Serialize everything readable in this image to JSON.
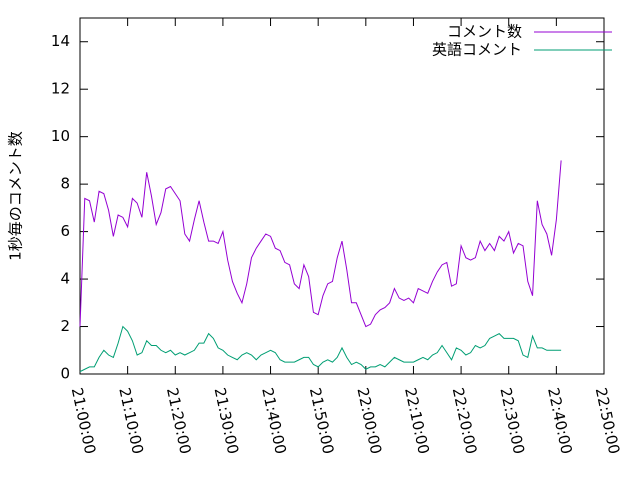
{
  "chart_data": {
    "type": "line",
    "ylabel": "1秒毎のコメント数",
    "x": [
      "21:00:00",
      "21:01:00",
      "21:02:00",
      "21:03:00",
      "21:04:00",
      "21:05:00",
      "21:06:00",
      "21:07:00",
      "21:08:00",
      "21:09:00",
      "21:10:00",
      "21:11:00",
      "21:12:00",
      "21:13:00",
      "21:14:00",
      "21:15:00",
      "21:16:00",
      "21:17:00",
      "21:18:00",
      "21:19:00",
      "21:20:00",
      "21:21:00",
      "21:22:00",
      "21:23:00",
      "21:24:00",
      "21:25:00",
      "21:26:00",
      "21:27:00",
      "21:28:00",
      "21:29:00",
      "21:30:00",
      "21:31:00",
      "21:32:00",
      "21:33:00",
      "21:34:00",
      "21:35:00",
      "21:36:00",
      "21:37:00",
      "21:38:00",
      "21:39:00",
      "21:40:00",
      "21:41:00",
      "21:42:00",
      "21:43:00",
      "21:44:00",
      "21:45:00",
      "21:46:00",
      "21:47:00",
      "21:48:00",
      "21:49:00",
      "21:50:00",
      "21:51:00",
      "21:52:00",
      "21:53:00",
      "21:54:00",
      "21:55:00",
      "21:56:00",
      "21:57:00",
      "21:58:00",
      "21:59:00",
      "22:00:00",
      "22:01:00",
      "22:02:00",
      "22:03:00",
      "22:04:00",
      "22:05:00",
      "22:06:00",
      "22:07:00",
      "22:08:00",
      "22:09:00",
      "22:10:00",
      "22:11:00",
      "22:12:00",
      "22:13:00",
      "22:14:00",
      "22:15:00",
      "22:16:00",
      "22:17:00",
      "22:18:00",
      "22:19:00",
      "22:20:00",
      "22:21:00",
      "22:22:00",
      "22:23:00",
      "22:24:00",
      "22:25:00",
      "22:26:00",
      "22:27:00",
      "22:28:00",
      "22:29:00",
      "22:30:00",
      "22:31:00",
      "22:32:00",
      "22:33:00",
      "22:34:00",
      "22:35:00",
      "22:36:00",
      "22:37:00",
      "22:38:00",
      "22:39:00",
      "22:40:00",
      "22:41:00"
    ],
    "series": [
      {
        "name": "コメント数",
        "color": "#9400d3",
        "values": [
          2.0,
          7.4,
          7.3,
          6.4,
          7.7,
          7.6,
          6.9,
          5.8,
          6.7,
          6.6,
          6.2,
          7.4,
          7.2,
          6.6,
          8.5,
          7.5,
          6.3,
          6.8,
          7.8,
          7.9,
          7.6,
          7.3,
          5.9,
          5.6,
          6.5,
          7.3,
          6.4,
          5.6,
          5.6,
          5.5,
          6.0,
          4.8,
          3.9,
          3.4,
          3.0,
          3.8,
          4.9,
          5.3,
          5.6,
          5.9,
          5.8,
          5.3,
          5.2,
          4.7,
          4.6,
          3.8,
          3.6,
          4.6,
          4.1,
          2.6,
          2.5,
          3.3,
          3.8,
          3.9,
          4.9,
          5.6,
          4.4,
          3.0,
          3.0,
          2.5,
          2.0,
          2.1,
          2.5,
          2.7,
          2.8,
          3.0,
          3.6,
          3.2,
          3.1,
          3.2,
          3.0,
          3.6,
          3.5,
          3.4,
          3.9,
          4.3,
          4.6,
          4.7,
          3.7,
          3.8,
          5.4,
          4.9,
          4.8,
          4.9,
          5.6,
          5.2,
          5.5,
          5.2,
          5.8,
          5.6,
          6.0,
          5.1,
          5.5,
          5.4,
          3.9,
          3.3,
          7.3,
          6.3,
          5.9,
          5.0,
          6.5,
          9.0
        ]
      },
      {
        "name": "英語コメント",
        "color": "#009e73",
        "values": [
          0.1,
          0.2,
          0.3,
          0.3,
          0.7,
          1.0,
          0.8,
          0.7,
          1.3,
          2.0,
          1.8,
          1.4,
          0.8,
          0.9,
          1.4,
          1.2,
          1.2,
          1.0,
          0.9,
          1.0,
          0.8,
          0.9,
          0.8,
          0.9,
          1.0,
          1.3,
          1.3,
          1.7,
          1.5,
          1.1,
          1.0,
          0.8,
          0.7,
          0.6,
          0.8,
          0.9,
          0.8,
          0.6,
          0.8,
          0.9,
          1.0,
          0.9,
          0.6,
          0.5,
          0.5,
          0.5,
          0.6,
          0.7,
          0.7,
          0.4,
          0.3,
          0.5,
          0.6,
          0.5,
          0.7,
          1.1,
          0.7,
          0.4,
          0.5,
          0.4,
          0.2,
          0.3,
          0.3,
          0.4,
          0.3,
          0.5,
          0.7,
          0.6,
          0.5,
          0.5,
          0.5,
          0.6,
          0.7,
          0.6,
          0.8,
          0.9,
          1.2,
          0.9,
          0.6,
          1.1,
          1.0,
          0.8,
          0.9,
          1.2,
          1.1,
          1.2,
          1.5,
          1.6,
          1.7,
          1.5,
          1.5,
          1.5,
          1.4,
          0.8,
          0.7,
          1.6,
          1.1,
          1.1,
          1.0,
          1.0,
          1.0,
          1.0
        ]
      }
    ],
    "xlim": [
      "21:00:00",
      "22:50:00"
    ],
    "xticks": [
      "21:00:00",
      "21:10:00",
      "21:20:00",
      "21:30:00",
      "21:40:00",
      "21:50:00",
      "22:00:00",
      "22:10:00",
      "22:20:00",
      "22:30:00",
      "22:40:00",
      "22:50:00"
    ],
    "ylim": [
      0,
      15
    ],
    "yticks": [
      0,
      2,
      4,
      6,
      8,
      10,
      12,
      14
    ],
    "grid": false,
    "legend": "top-right"
  }
}
